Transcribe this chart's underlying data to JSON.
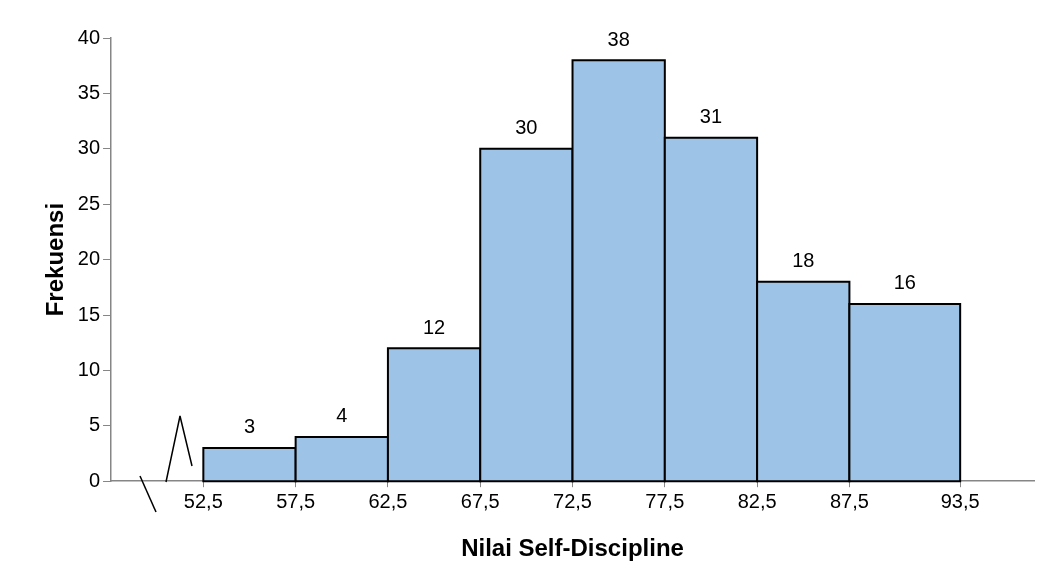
{
  "chart_data": {
    "type": "histogram",
    "xlabel": "Nilai Self-Discipline",
    "ylabel": "Frekuensi",
    "bins": [
      52.5,
      57.5,
      62.5,
      67.5,
      72.5,
      77.5,
      82.5,
      87.5,
      93.5
    ],
    "values": [
      3,
      4,
      12,
      30,
      38,
      31,
      18,
      16
    ],
    "color": "#9dc3e6",
    "xlim": [
      47.5,
      97.5
    ],
    "xticks": [
      {
        "value": 52.5,
        "label": "52,5"
      },
      {
        "value": 57.5,
        "label": "57,5"
      },
      {
        "value": 62.5,
        "label": "62,5"
      },
      {
        "value": 67.5,
        "label": "67,5"
      },
      {
        "value": 72.5,
        "label": "72,5"
      },
      {
        "value": 77.5,
        "label": "77,5"
      },
      {
        "value": 82.5,
        "label": "82,5"
      },
      {
        "value": 87.5,
        "label": "87,5"
      },
      {
        "value": 93.5,
        "label": "93,5"
      }
    ],
    "ylim": [
      0,
      40
    ],
    "yticks": [
      0,
      5,
      10,
      15,
      20,
      25,
      30,
      35,
      40
    ],
    "grid": false,
    "legend": false,
    "data_labels": true
  }
}
